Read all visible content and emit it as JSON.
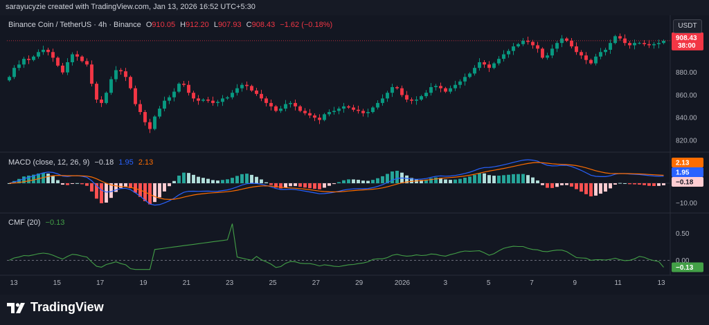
{
  "caption": "sarayucyzie created with TradingView.com, Jan 13, 2026 16:52 UTC+5:30",
  "symbol": {
    "title": "Binance Coin / TetherUS · 4h · Binance",
    "o_key": "O",
    "o_val": "910.05",
    "h_key": "H",
    "h_val": "912.20",
    "l_key": "L",
    "l_val": "907.93",
    "c_key": "C",
    "c_val": "908.43",
    "change": "−1.62 (−0.18%)"
  },
  "currency_button": "USDT",
  "price_axis": {
    "ticks": [
      "880.00",
      "860.00",
      "840.00",
      "820.00"
    ],
    "last_price": "908.43",
    "countdown": "38:00"
  },
  "macd_legend": {
    "label": "MACD (close, 12, 26, 9)",
    "hist": "−0.18",
    "macd": "1.95",
    "signal": "2.13"
  },
  "macd_axis": {
    "tick": "−10.00",
    "badge_signal": "2.13",
    "badge_macd": "1.95",
    "badge_hist": "−0.18"
  },
  "cmf_legend": {
    "label": "CMF (20)",
    "value": "−0.13"
  },
  "cmf_axis": {
    "ticks": [
      "0.50",
      "0.00"
    ],
    "badge": "−0.13"
  },
  "time_axis": [
    "13",
    "15",
    "17",
    "19",
    "21",
    "23",
    "25",
    "27",
    "29",
    "2026",
    "3",
    "5",
    "7",
    "9",
    "11",
    "13"
  ],
  "brand": "TradingView",
  "colors": {
    "up": "#089981",
    "down": "#f23645",
    "macd": "#2962ff",
    "signal": "#ff6d00",
    "cmf": "#43a047",
    "badge_price": "#f23645"
  },
  "chart_data": [
    {
      "type": "candlestick",
      "title": "Binance Coin / TetherUS · 4h · Binance",
      "ylim": [
        812,
        922
      ],
      "x_ticks": [
        "13",
        "15",
        "17",
        "19",
        "21",
        "23",
        "25",
        "27",
        "29",
        "2026",
        "3",
        "5",
        "7",
        "9",
        "11",
        "13"
      ],
      "close": [
        876,
        884,
        887,
        892,
        891,
        894,
        898,
        900,
        898,
        893,
        886,
        880,
        889,
        896,
        894,
        890,
        887,
        870,
        856,
        853,
        862,
        874,
        882,
        881,
        876,
        866,
        852,
        845,
        836,
        830,
        841,
        848,
        855,
        858,
        863,
        870,
        869,
        862,
        857,
        855,
        856,
        855,
        853,
        854,
        857,
        858,
        862,
        866,
        869,
        868,
        864,
        861,
        857,
        853,
        850,
        846,
        848,
        852,
        853,
        850,
        846,
        844,
        842,
        840,
        838,
        843,
        845,
        846,
        848,
        850,
        849,
        847,
        846,
        844,
        845,
        849,
        853,
        857,
        862,
        867,
        866,
        860,
        856,
        855,
        856,
        859,
        862,
        867,
        868,
        866,
        863,
        866,
        869,
        872,
        876,
        879,
        884,
        889,
        887,
        884,
        888,
        892,
        896,
        899,
        903,
        905,
        908,
        907,
        904,
        901,
        893,
        895,
        901,
        906,
        910,
        908,
        903,
        898,
        895,
        891,
        888,
        894,
        898,
        900,
        906,
        912,
        910,
        906,
        904,
        906,
        906,
        905,
        904,
        905,
        906,
        908
      ],
      "series": [
        {
          "name": "Price",
          "type": "candles",
          "last": 908.43
        }
      ]
    },
    {
      "type": "line",
      "title": "MACD (close, 12, 26, 9)",
      "series": [
        {
          "name": "MACD",
          "last": 1.95
        },
        {
          "name": "Signal",
          "last": 2.13
        },
        {
          "name": "Histogram",
          "last": -0.18
        }
      ]
    },
    {
      "type": "line",
      "title": "CMF (20)",
      "ylim": [
        -0.2,
        0.75
      ],
      "series": [
        {
          "name": "CMF",
          "last": -0.13
        }
      ]
    }
  ]
}
